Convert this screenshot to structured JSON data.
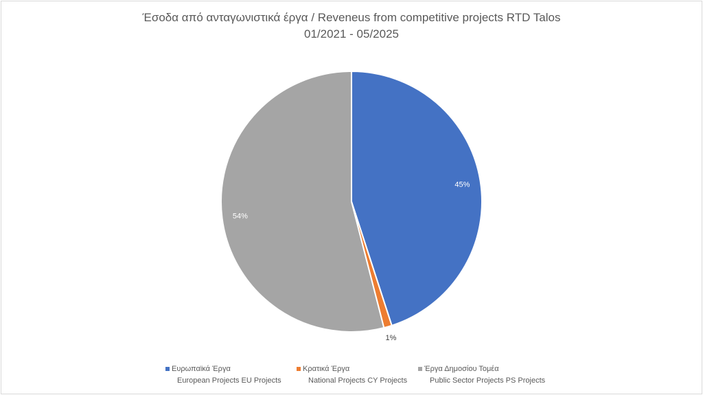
{
  "chart_data": {
    "type": "pie",
    "title_line1": "Έσοδα από ανταγωνιστικά έργα / Reveneus from competitive projects RTD Talos",
    "title_line2": "01/2021 - 05/2025",
    "slices": [
      {
        "label_gr": "Ευρωπαϊκά Έργα",
        "label_en": "European Projects EU Projects",
        "value": 45,
        "display": "45%",
        "color": "#4472c4"
      },
      {
        "label_gr": "Κρατικά Έργα",
        "label_en": "National Projects CY Projects",
        "value": 1,
        "display": "1%",
        "color": "#ed7d31"
      },
      {
        "label_gr": "Έργα Δημοσίου Τομέα",
        "label_en": "Public Sector Projects PS Projects",
        "value": 54,
        "display": "54%",
        "color": "#a5a5a5"
      }
    ],
    "legend_position": "bottom"
  }
}
